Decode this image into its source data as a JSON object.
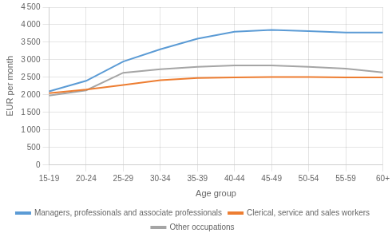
{
  "chart_data": {
    "type": "line",
    "categories": [
      "15-19",
      "20-24",
      "25-29",
      "30-34",
      "35-39",
      "40-44",
      "45-49",
      "50-54",
      "55-59",
      "60+"
    ],
    "series": [
      {
        "name": "Managers, professionals and associate\nprofessionals",
        "color": "#5B9BD5",
        "values": [
          2100,
          2400,
          2950,
          3300,
          3600,
          3800,
          3850,
          3820,
          3780,
          3780
        ]
      },
      {
        "name": "Clerical, service and sales workers",
        "color": "#ED7D31",
        "values": [
          2050,
          2150,
          2280,
          2420,
          2480,
          2500,
          2510,
          2510,
          2500,
          2500
        ]
      },
      {
        "name": "Other occupations",
        "color": "#A5A5A5",
        "values": [
          1980,
          2130,
          2630,
          2730,
          2800,
          2840,
          2840,
          2800,
          2750,
          2640
        ]
      }
    ],
    "x_label": "Age group",
    "y_label": "EUR per month",
    "ylim": [
      0,
      4500
    ],
    "yticks": [
      0,
      500,
      {
        "value": 1000,
        "label": "1 000"
      },
      {
        "value": 1500,
        "label": "1 500"
      },
      {
        "value": 2000,
        "label": "2 000"
      },
      {
        "value": 2500,
        "label": "2 500"
      },
      {
        "value": 3000,
        "label": "3 000"
      },
      {
        "value": 3500,
        "label": "3 500"
      },
      {
        "value": 4000,
        "label": "4 000"
      },
      {
        "value": 4500,
        "label": "4 500"
      }
    ],
    "grid": true,
    "legend": "bottom"
  }
}
